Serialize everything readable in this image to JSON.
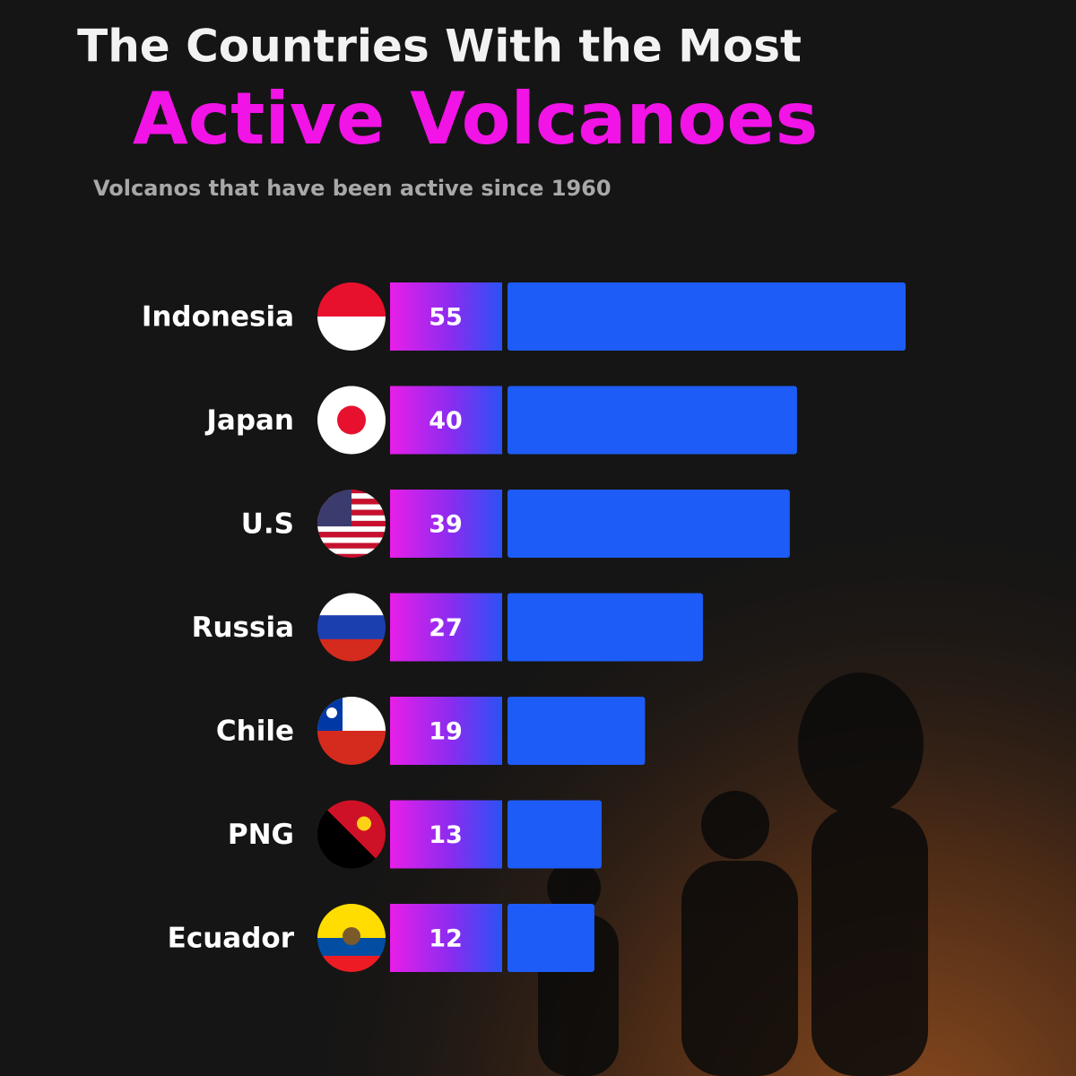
{
  "chart_data": {
    "type": "bar",
    "title": "The Countries With the Most",
    "subtitle": "Active Volcanoes",
    "caption": "Volcanos that have been active since 1960",
    "categories": [
      "Indonesia",
      "Japan",
      "U.S",
      "Russia",
      "Chile",
      "PNG",
      "Ecuador"
    ],
    "values": [
      55,
      40,
      39,
      27,
      19,
      13,
      12
    ],
    "color": "#1d5cf6"
  }
}
